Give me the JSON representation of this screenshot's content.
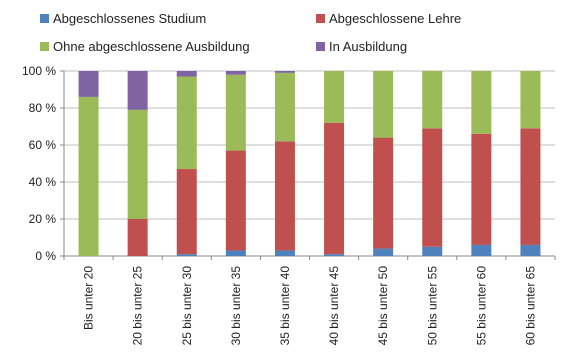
{
  "chart_data": {
    "type": "bar",
    "stacked": true,
    "title": "",
    "xlabel": "",
    "ylabel": "",
    "ylim": [
      0,
      100
    ],
    "yticks": [
      "0 %",
      "20 %",
      "40 %",
      "60 %",
      "80 %",
      "100 %"
    ],
    "grid": true,
    "legend_position": "top",
    "categories": [
      "Bis unter 20",
      "20 bis unter 25",
      "25 bis unter 30",
      "30 bis unter 35",
      "35 bis unter 40",
      "40 bis unter 45",
      "45 bis unter 50",
      "50 bis unter 55",
      "55 bis unter 60",
      "60 bis unter 65"
    ],
    "series": [
      {
        "name": "Abgeschlossenes Studium",
        "color": "#4f81bd",
        "values": [
          0,
          0,
          1,
          3,
          3,
          1,
          4,
          5,
          6,
          6
        ]
      },
      {
        "name": "Abgeschlossene Lehre",
        "color": "#c0504d",
        "values": [
          0,
          20,
          46,
          54,
          59,
          71,
          60,
          64,
          60,
          63
        ]
      },
      {
        "name": "Ohne abgeschlossene Ausbildung",
        "color": "#9bbb59",
        "values": [
          86,
          59,
          50,
          41,
          37,
          28,
          36,
          31,
          34,
          31
        ]
      },
      {
        "name": "In Ausbildung",
        "color": "#8064a2",
        "values": [
          14,
          21,
          3,
          2,
          1,
          0,
          0,
          0,
          0,
          0
        ]
      }
    ]
  }
}
